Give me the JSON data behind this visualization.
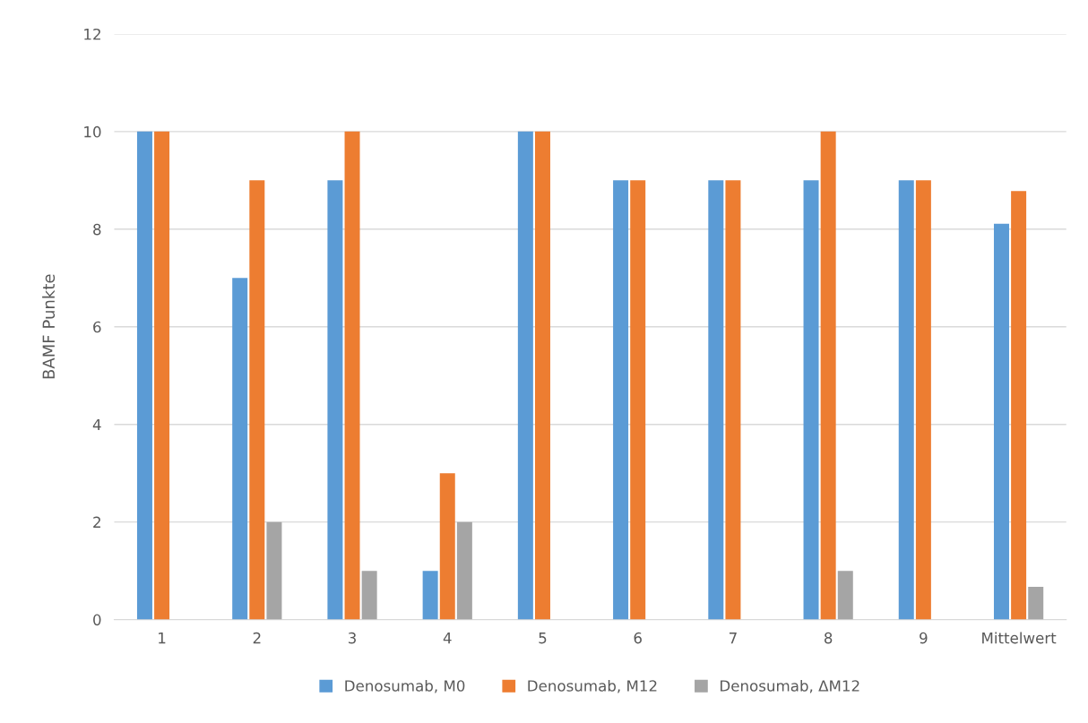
{
  "chart_data": {
    "type": "bar",
    "ylabel": "BAMF Punkte",
    "categories": [
      "1",
      "2",
      "3",
      "4",
      "5",
      "6",
      "7",
      "8",
      "9",
      "Mittelwert"
    ],
    "series": [
      {
        "name": "Denosumab, M0",
        "color": "#5b9bd5",
        "values": [
          10,
          7,
          9,
          1,
          10,
          9,
          9,
          9,
          9,
          8.11
        ]
      },
      {
        "name": "Denosumab, M12",
        "color": "#ed7d31",
        "values": [
          10,
          9,
          10,
          3,
          10,
          9,
          9,
          10,
          9,
          8.78
        ]
      },
      {
        "name": "Denosumab, ΔM12",
        "color": "#a5a5a5",
        "values": [
          0,
          2,
          1,
          2,
          0,
          0,
          0,
          1,
          0,
          0.67
        ]
      }
    ],
    "ylim": [
      0,
      12
    ],
    "yticks": [
      0,
      2,
      4,
      6,
      8,
      10,
      12
    ],
    "grid": "y",
    "legend": "bottom"
  }
}
